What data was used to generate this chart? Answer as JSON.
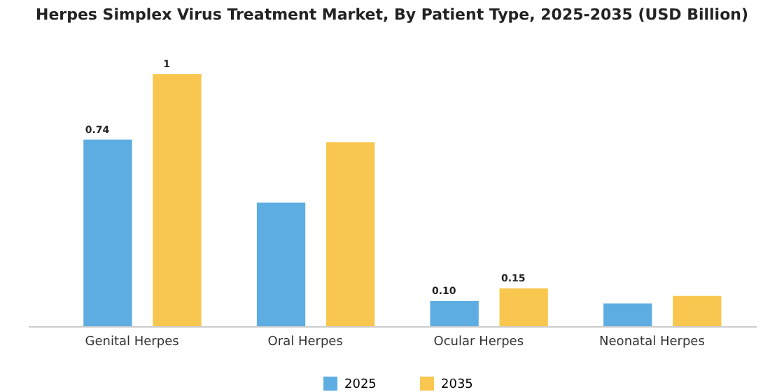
{
  "chart_data": {
    "type": "bar",
    "title": "Herpes Simplex Virus Treatment Market, By Patient Type, 2025-2035 (USD Billion)",
    "categories": [
      "Genital Herpes",
      "Oral Herpes",
      "Ocular Herpes",
      "Neonatal Herpes"
    ],
    "series": [
      {
        "name": "2025",
        "color": "#5dade2",
        "values": [
          0.74,
          0.49,
          0.1,
          0.09
        ],
        "value_labels": [
          "0.74",
          null,
          "0.10",
          null
        ]
      },
      {
        "name": "2035",
        "color": "#f9c74f",
        "values": [
          1,
          0.73,
          0.15,
          0.12
        ],
        "value_labels": [
          "1",
          null,
          "0.15",
          null
        ]
      }
    ],
    "tick_labels": "x",
    "legend": "bottom",
    "grid": false
  }
}
